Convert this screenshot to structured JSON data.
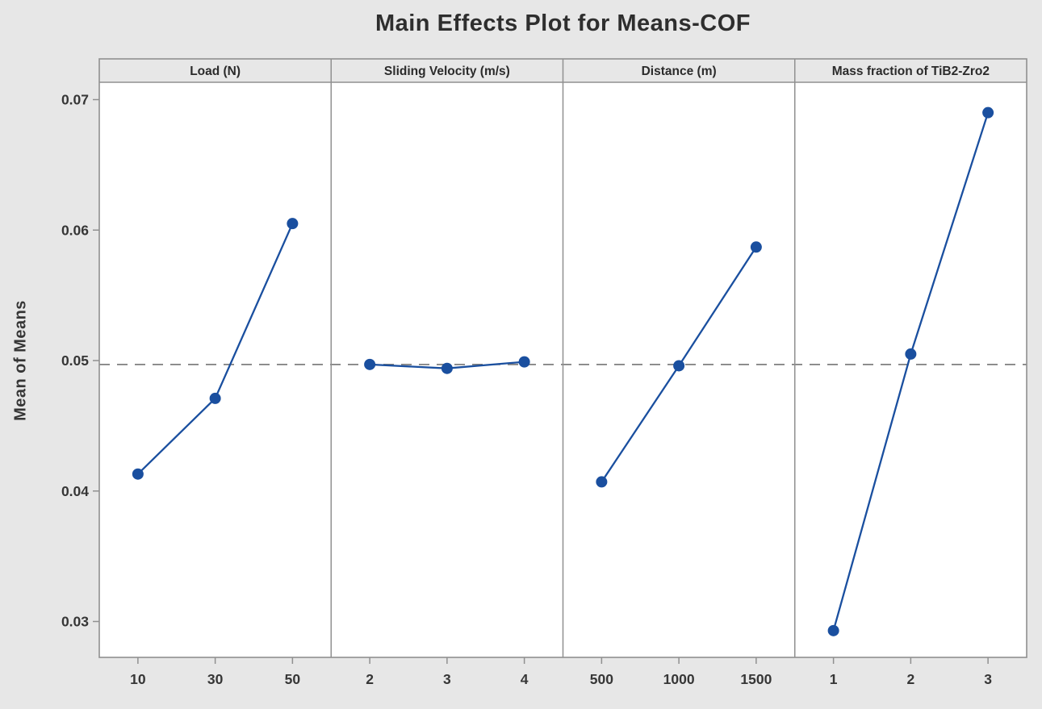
{
  "title": "Main Effects Plot for Means-COF",
  "chart_data": {
    "type": "line",
    "title": "Main Effects Plot for Means-COF",
    "ylabel": "Mean of Means",
    "xlabel": "",
    "ylim": [
      0.0273,
      0.0713
    ],
    "yticks": [
      0.03,
      0.04,
      0.05,
      0.06,
      0.07
    ],
    "ytick_labels": [
      "0.03",
      "0.04",
      "0.05",
      "0.06",
      "0.07"
    ],
    "grand_mean_reference": 0.0497,
    "grid": "off",
    "legend": "none",
    "panels": [
      {
        "label": "Load (N)",
        "categories": [
          "10",
          "30",
          "50"
        ],
        "values": [
          0.0413,
          0.0471,
          0.0605
        ]
      },
      {
        "label": "Sliding Velocity (m/s)",
        "categories": [
          "2",
          "3",
          "4"
        ],
        "values": [
          0.0497,
          0.0494,
          0.0499
        ]
      },
      {
        "label": "Distance (m)",
        "categories": [
          "500",
          "1000",
          "1500"
        ],
        "values": [
          0.0407,
          0.0496,
          0.0587
        ]
      },
      {
        "label": "Mass fraction of TiB2-Zro2",
        "categories": [
          "1",
          "2",
          "3"
        ],
        "values": [
          0.0293,
          0.0505,
          0.069
        ]
      }
    ],
    "colors": {
      "series": "#1a4f9f",
      "reference_line": "#7f7f7f",
      "panel_background": "#ffffff",
      "outer_background": "#e7e7e7",
      "border": "#909090",
      "text": "#363636"
    }
  }
}
